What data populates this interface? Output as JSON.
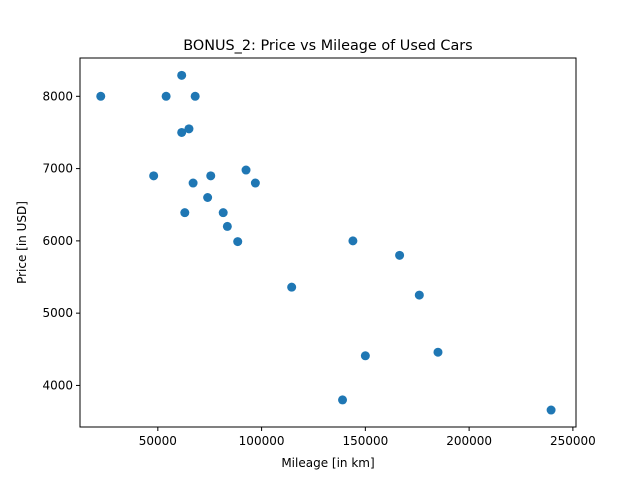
{
  "chart_data": {
    "type": "scatter",
    "title": "BONUS_2: Price vs Mileage of Used Cars",
    "xlabel": "Mileage [in km]",
    "ylabel": "Price [in USD]",
    "xlim": [
      12500,
      251500
    ],
    "ylim": [
      3425,
      8530
    ],
    "xticks": [
      50000,
      100000,
      150000,
      200000,
      250000
    ],
    "xtick_labels": [
      "50000",
      "100000",
      "150000",
      "200000",
      "250000"
    ],
    "yticks": [
      4000,
      5000,
      6000,
      7000,
      8000
    ],
    "ytick_labels": [
      "4000",
      "5000",
      "6000",
      "7000",
      "8000"
    ],
    "grid": false,
    "marker_color": "#1f77b4",
    "x": [
      22500,
      54000,
      61500,
      68000,
      61500,
      65000,
      48000,
      67000,
      75500,
      92500,
      97000,
      63000,
      74000,
      81500,
      83500,
      88500,
      144000,
      166500,
      114500,
      176000,
      185000,
      150000,
      139000,
      239500
    ],
    "y": [
      8000,
      8000,
      8290,
      8000,
      7500,
      7550,
      6900,
      6800,
      6900,
      6980,
      6800,
      6390,
      6600,
      6390,
      6200,
      5990,
      6000,
      5800,
      5360,
      5250,
      4460,
      4410,
      3800,
      3660
    ]
  }
}
